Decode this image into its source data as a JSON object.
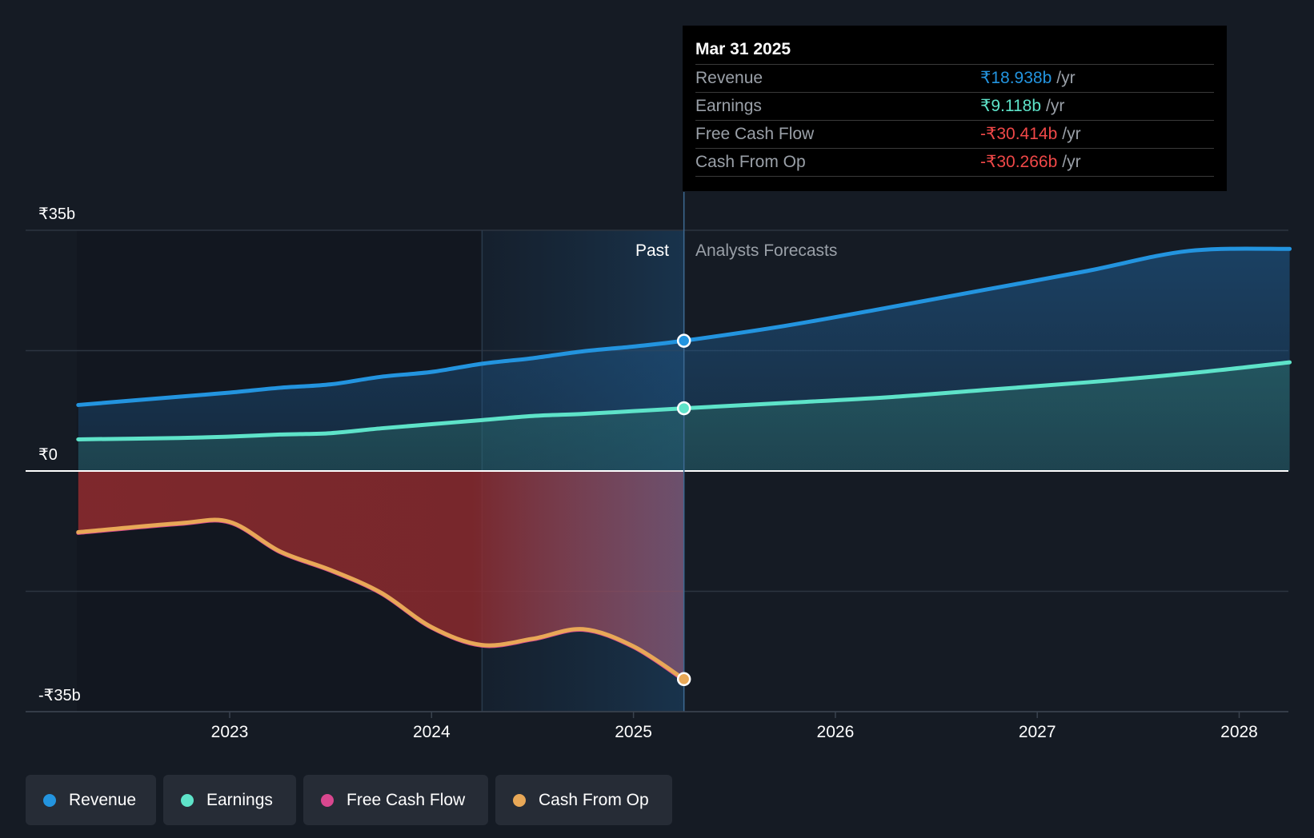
{
  "tooltip": {
    "date": "Mar 31 2025",
    "rows": [
      {
        "label": "Revenue",
        "value": "₹18.938b",
        "unit": "/yr",
        "color": "#2394df"
      },
      {
        "label": "Earnings",
        "value": "₹9.118b",
        "unit": "/yr",
        "color": "#5ee3c9"
      },
      {
        "label": "Free Cash Flow",
        "value": "-₹30.414b",
        "unit": "/yr",
        "color": "#f04848"
      },
      {
        "label": "Cash From Op",
        "value": "-₹30.266b",
        "unit": "/yr",
        "color": "#f04848"
      }
    ]
  },
  "legend": [
    {
      "label": "Revenue",
      "color": "#2394df"
    },
    {
      "label": "Earnings",
      "color": "#5ee3c9"
    },
    {
      "label": "Free Cash Flow",
      "color": "#d9478f"
    },
    {
      "label": "Cash From Op",
      "color": "#e8a857"
    }
  ],
  "chart_data": {
    "type": "area",
    "ylim": [
      -35,
      35
    ],
    "y_ticks": [
      {
        "value": 35,
        "label": "₹35b"
      },
      {
        "value": 0,
        "label": "₹0"
      },
      {
        "value": -35,
        "label": "-₹35b"
      }
    ],
    "x_ticks": [
      2023,
      2024,
      2025,
      2026,
      2027,
      2028
    ],
    "xlim": [
      2022.25,
      2028.25
    ],
    "past_label": "Past",
    "forecast_label": "Analysts Forecasts",
    "forecast_start": 2025.25,
    "highlight_start": 2024.25,
    "colors": {
      "revenue": "#2394df",
      "earnings": "#5ee3c9",
      "free_cash_flow": "#d9478f",
      "cash_from_op": "#e8a857"
    },
    "series": [
      {
        "name": "Revenue",
        "key": "revenue",
        "x": [
          2022.25,
          2022.75,
          2023.0,
          2023.25,
          2023.5,
          2023.75,
          2024.0,
          2024.25,
          2024.5,
          2024.75,
          2025.0,
          2025.25,
          2025.75,
          2026.25,
          2026.75,
          2027.25,
          2027.75,
          2028.25
        ],
        "y": [
          9.6,
          10.8,
          11.4,
          12.1,
          12.6,
          13.7,
          14.4,
          15.6,
          16.4,
          17.4,
          18.1,
          18.938,
          21.1,
          23.7,
          26.4,
          29.1,
          32.0,
          32.3
        ]
      },
      {
        "name": "Earnings",
        "key": "earnings",
        "x": [
          2022.25,
          2022.75,
          2023.0,
          2023.25,
          2023.5,
          2023.75,
          2024.0,
          2024.25,
          2024.5,
          2024.75,
          2025.0,
          2025.25,
          2025.75,
          2026.25,
          2026.75,
          2027.25,
          2027.75,
          2028.25
        ],
        "y": [
          4.6,
          4.8,
          5.0,
          5.3,
          5.5,
          6.2,
          6.8,
          7.4,
          8.0,
          8.3,
          8.7,
          9.118,
          9.9,
          10.7,
          11.8,
          12.9,
          14.2,
          15.8
        ]
      },
      {
        "name": "Free Cash Flow",
        "key": "free_cash_flow",
        "x": [
          2022.25,
          2022.75,
          2023.0,
          2023.25,
          2023.5,
          2023.75,
          2024.0,
          2024.25,
          2024.5,
          2024.75,
          2025.0,
          2025.25
        ],
        "y": [
          -9.0,
          -7.7,
          -7.5,
          -11.8,
          -14.5,
          -17.8,
          -22.8,
          -25.4,
          -24.5,
          -23.1,
          -25.6,
          -30.414
        ]
      },
      {
        "name": "Cash From Op",
        "key": "cash_from_op",
        "x": [
          2022.25,
          2022.75,
          2023.0,
          2023.25,
          2023.5,
          2023.75,
          2024.0,
          2024.25,
          2024.5,
          2024.75,
          2025.0,
          2025.25
        ],
        "y": [
          -8.9,
          -7.6,
          -7.4,
          -11.7,
          -14.4,
          -17.7,
          -22.7,
          -25.3,
          -24.4,
          -23.0,
          -25.5,
          -30.266
        ]
      }
    ]
  }
}
